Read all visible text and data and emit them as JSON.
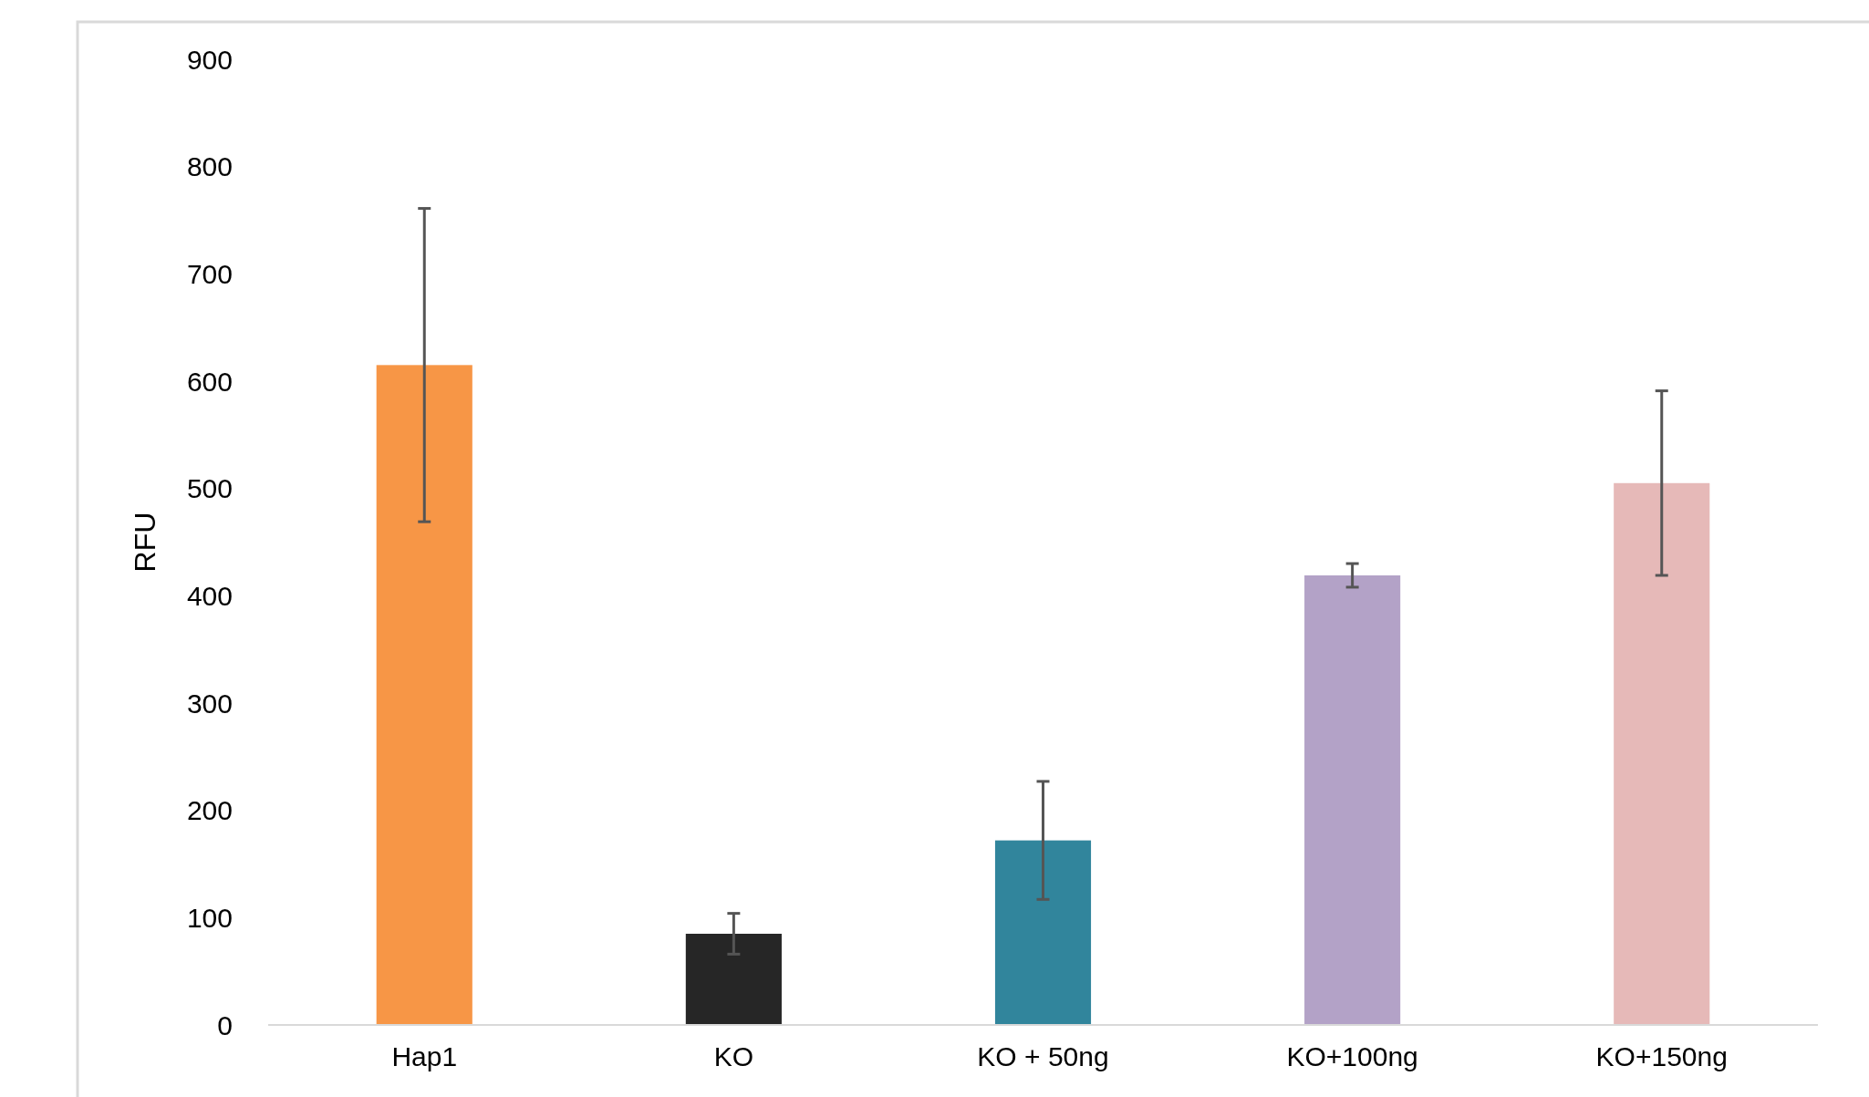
{
  "chart_data": {
    "type": "bar",
    "ylabel": "RFU",
    "categories": [
      "Hap1",
      "KO",
      "KO + 50ng",
      "KO+100ng",
      "KO+150ng"
    ],
    "values": [
      615,
      85,
      172,
      419,
      505
    ],
    "errors": [
      146,
      19,
      55,
      11,
      86
    ],
    "colors": [
      "#f79646",
      "#262626",
      "#31859c",
      "#b3a2c7",
      "#e6b9b8"
    ],
    "ylim": [
      0,
      900
    ],
    "yticks": [
      0,
      100,
      200,
      300,
      400,
      500,
      600,
      700,
      800,
      900
    ],
    "grid": false
  }
}
